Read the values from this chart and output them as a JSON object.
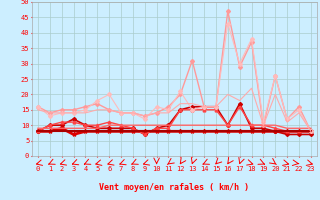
{
  "background_color": "#cceeff",
  "grid_color": "#aacccc",
  "xlabel": "Vent moyen/en rafales ( km/h )",
  "xlim": [
    -0.5,
    23.5
  ],
  "ylim": [
    0,
    50
  ],
  "yticks": [
    0,
    5,
    10,
    15,
    20,
    25,
    30,
    35,
    40,
    45,
    50
  ],
  "xticks": [
    0,
    1,
    2,
    3,
    4,
    5,
    6,
    7,
    8,
    9,
    10,
    11,
    12,
    13,
    14,
    15,
    16,
    17,
    18,
    19,
    20,
    21,
    22,
    23
  ],
  "series": [
    {
      "color": "#dd0000",
      "linewidth": 2.0,
      "marker": "*",
      "markersize": 3,
      "alpha": 1.0,
      "values": [
        8,
        8,
        9,
        7,
        8,
        8,
        8,
        8,
        8,
        8,
        8,
        8,
        8,
        8,
        8,
        8,
        8,
        8,
        8,
        8,
        8,
        8,
        8,
        8
      ]
    },
    {
      "color": "#cc0000",
      "linewidth": 1.2,
      "marker": "D",
      "markersize": 2,
      "alpha": 1.0,
      "values": [
        8,
        10,
        10,
        12,
        10,
        9,
        9,
        9,
        9,
        7,
        9,
        10,
        15,
        16,
        16,
        16,
        10,
        17,
        9,
        9,
        8,
        7,
        7,
        7
      ]
    },
    {
      "color": "#ff4444",
      "linewidth": 1.0,
      "marker": "^",
      "markersize": 2,
      "alpha": 1.0,
      "values": [
        8,
        10,
        11,
        11,
        10,
        10,
        11,
        10,
        9,
        7,
        9,
        9,
        15,
        15,
        15,
        15,
        10,
        16,
        10,
        10,
        9,
        8,
        8,
        8
      ]
    },
    {
      "color": "#ff9999",
      "linewidth": 1.0,
      "marker": "D",
      "markersize": 2,
      "alpha": 1.0,
      "values": [
        16,
        14,
        15,
        15,
        16,
        17,
        15,
        14,
        14,
        13,
        14,
        16,
        20,
        31,
        16,
        16,
        47,
        29,
        37,
        10,
        26,
        12,
        16,
        8
      ]
    },
    {
      "color": "#ffbbbb",
      "linewidth": 0.8,
      "marker": "D",
      "markersize": 2,
      "alpha": 1.0,
      "values": [
        16,
        13,
        14,
        14,
        15,
        18,
        20,
        14,
        14,
        12,
        16,
        15,
        21,
        15,
        16,
        16,
        43,
        30,
        38,
        11,
        26,
        12,
        15,
        8
      ]
    },
    {
      "color": "#aa0000",
      "linewidth": 1.5,
      "marker": null,
      "markersize": 0,
      "alpha": 1.0,
      "values": [
        8,
        8,
        8,
        8,
        8,
        8,
        8,
        8,
        8,
        8,
        8,
        8,
        8,
        8,
        8,
        8,
        8,
        8,
        8,
        8,
        8,
        8,
        8,
        8
      ]
    },
    {
      "color": "#ff6666",
      "linewidth": 1.0,
      "marker": null,
      "markersize": 0,
      "alpha": 1.0,
      "values": [
        9,
        9,
        9,
        9,
        9,
        9,
        10,
        10,
        10,
        10,
        10,
        10,
        10,
        10,
        10,
        10,
        10,
        10,
        10,
        10,
        10,
        9,
        9,
        9
      ]
    },
    {
      "color": "#ffaaaa",
      "linewidth": 0.8,
      "marker": null,
      "markersize": 0,
      "alpha": 1.0,
      "values": [
        15,
        14,
        14,
        14,
        14,
        15,
        15,
        14,
        14,
        13,
        14,
        14,
        17,
        17,
        16,
        16,
        20,
        18,
        22,
        10,
        20,
        11,
        14,
        8
      ]
    }
  ],
  "arrow_angles_deg": [
    225,
    240,
    230,
    235,
    240,
    225,
    230,
    235,
    240,
    230,
    270,
    250,
    260,
    265,
    240,
    255,
    260,
    265,
    310,
    300,
    290,
    315,
    330,
    315
  ],
  "axis_fontsize": 6,
  "tick_fontsize": 5
}
